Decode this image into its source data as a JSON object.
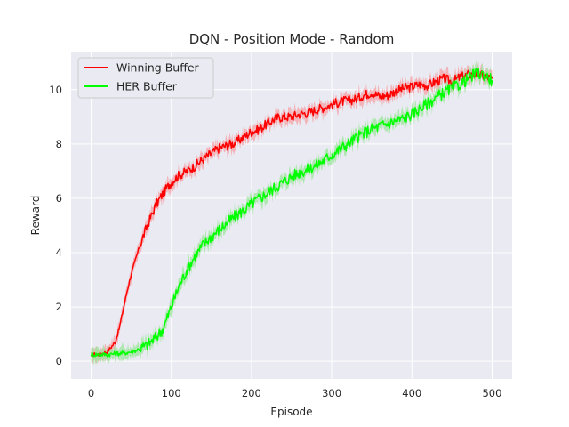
{
  "chart_data": {
    "type": "line",
    "title": "DQN - Position Mode - Random",
    "xlabel": "Episode",
    "ylabel": "Reward",
    "xlim": [
      -25,
      525
    ],
    "ylim": [
      -0.65,
      11.4
    ],
    "xticks": [
      0,
      100,
      200,
      300,
      400,
      500
    ],
    "yticks": [
      0,
      2,
      4,
      6,
      8,
      10
    ],
    "grid": true,
    "legend_position": "upper-left",
    "series": [
      {
        "name": "Winning Buffer",
        "color": "#ff0000",
        "shade": "#f4a2a6",
        "x": [
          0,
          10,
          20,
          30,
          35,
          40,
          45,
          50,
          60,
          70,
          80,
          90,
          100,
          110,
          120,
          130,
          140,
          150,
          160,
          170,
          180,
          190,
          200,
          210,
          220,
          230,
          240,
          250,
          260,
          270,
          280,
          290,
          300,
          310,
          320,
          330,
          340,
          350,
          360,
          370,
          380,
          390,
          400,
          410,
          420,
          430,
          440,
          450,
          460,
          470,
          480,
          490,
          500
        ],
        "y": [
          0.25,
          0.25,
          0.35,
          0.7,
          1.2,
          1.9,
          2.6,
          3.2,
          4.2,
          5.0,
          5.7,
          6.2,
          6.6,
          6.85,
          7.0,
          7.2,
          7.45,
          7.65,
          7.85,
          7.95,
          8.05,
          8.25,
          8.45,
          8.55,
          8.75,
          8.95,
          9.0,
          9.0,
          9.1,
          9.15,
          9.25,
          9.35,
          9.45,
          9.55,
          9.6,
          9.65,
          9.8,
          9.9,
          9.75,
          9.8,
          9.95,
          10.05,
          10.1,
          10.2,
          10.15,
          10.3,
          10.4,
          10.3,
          10.45,
          10.55,
          10.6,
          10.5,
          10.4
        ]
      },
      {
        "name": "HER Buffer",
        "color": "#00ff00",
        "shade": "#9be59b",
        "x": [
          0,
          10,
          20,
          30,
          40,
          50,
          60,
          70,
          80,
          90,
          100,
          110,
          120,
          130,
          140,
          150,
          160,
          170,
          180,
          190,
          200,
          210,
          220,
          230,
          240,
          250,
          260,
          270,
          280,
          290,
          300,
          310,
          320,
          330,
          340,
          350,
          360,
          370,
          380,
          390,
          400,
          410,
          420,
          430,
          440,
          450,
          460,
          470,
          480,
          490,
          500
        ],
        "y": [
          0.25,
          0.25,
          0.25,
          0.28,
          0.3,
          0.35,
          0.45,
          0.6,
          0.85,
          1.2,
          2.0,
          2.8,
          3.4,
          3.9,
          4.3,
          4.6,
          4.85,
          5.1,
          5.35,
          5.55,
          5.8,
          6.0,
          6.2,
          6.4,
          6.6,
          6.8,
          6.95,
          7.05,
          7.2,
          7.4,
          7.6,
          7.8,
          8.0,
          8.2,
          8.4,
          8.55,
          8.65,
          8.75,
          8.85,
          8.95,
          9.1,
          9.3,
          9.5,
          9.7,
          9.9,
          10.05,
          10.2,
          10.4,
          10.6,
          10.55,
          10.35
        ]
      }
    ]
  }
}
